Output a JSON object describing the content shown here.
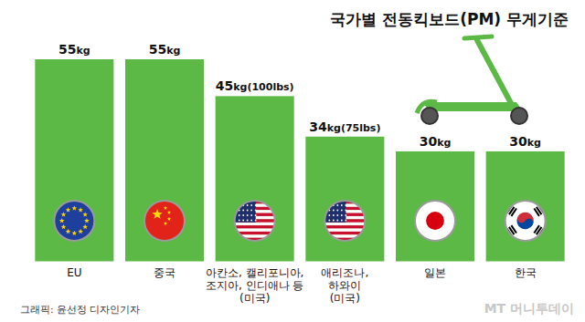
{
  "chart_data": {
    "type": "bar",
    "title": "국가별 전동킥보드(PM) 무게기준",
    "categories": [
      "EU",
      "중국",
      "아칸소, 캘리포니아,\n조지아, 인디애나 등\n(미국)",
      "애리조나,\n하와이\n(미국)",
      "일본",
      "한국"
    ],
    "values": [
      55,
      55,
      45,
      34,
      30,
      30
    ],
    "value_labels": [
      "55kg",
      "55kg",
      "45kg(100lbs)",
      "34kg(75lbs)",
      "30kg",
      "30kg"
    ],
    "color": "#5cb946",
    "ylim": [
      0,
      55
    ],
    "data_labels": true,
    "tick_labels": "x",
    "grid": false,
    "source": "그래픽: 윤선정 디자인기자",
    "watermark": "MT 머니투데이"
  }
}
